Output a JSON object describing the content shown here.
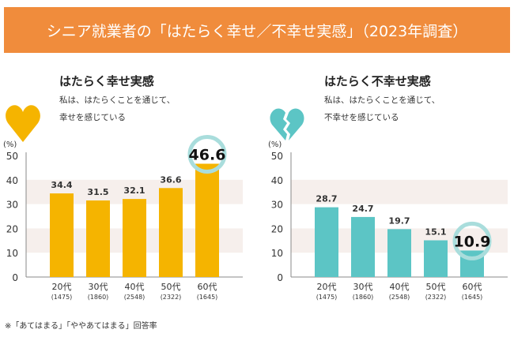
{
  "header": {
    "title": "シニア就業者の「はたらく幸せ／不幸せ実感」（2023年調査）"
  },
  "colors": {
    "header": "#F08C3C",
    "happy": "#F5B400",
    "unhappy": "#5CC5C5",
    "highlight_ring": "#A9DDDC",
    "band": "#F6EFEC"
  },
  "panels": [
    {
      "icon": "heart-icon",
      "title": "はたらく幸せ実感",
      "desc_line1": "私は、はたらくことを通じて、",
      "desc_line2": "幸せを感じている"
    },
    {
      "icon": "broken-heart-icon",
      "title": "はたらく不幸せ実感",
      "desc_line1": "私は、はたらくことを通じて、",
      "desc_line2": "不幸せを感じている"
    }
  ],
  "footnote": "※「あてはまる」「ややあてはまる」回答率",
  "chart_data": [
    {
      "type": "bar",
      "ylabel": "(%)",
      "ylim": [
        0,
        50
      ],
      "yticks": [
        "0",
        "10",
        "20",
        "30",
        "40",
        "50"
      ],
      "categories": [
        "20代",
        "30代",
        "40代",
        "50代",
        "60代"
      ],
      "sample_sizes": [
        "(1475)",
        "(1860)",
        "(2548)",
        "(2322)",
        "(1645)"
      ],
      "values": [
        34.4,
        31.5,
        32.1,
        36.6,
        46.6
      ],
      "labels": [
        "34.4",
        "31.5",
        "32.1",
        "36.6",
        "46.6"
      ],
      "highlight": "60代",
      "color": "#F5B400"
    },
    {
      "type": "bar",
      "ylabel": "(%)",
      "ylim": [
        0,
        50
      ],
      "yticks": [
        "0",
        "10",
        "20",
        "30",
        "40",
        "50"
      ],
      "categories": [
        "20代",
        "30代",
        "40代",
        "50代",
        "60代"
      ],
      "sample_sizes": [
        "(1475)",
        "(1860)",
        "(2548)",
        "(2322)",
        "(1645)"
      ],
      "values": [
        28.7,
        24.7,
        19.7,
        15.1,
        10.9
      ],
      "labels": [
        "28.7",
        "24.7",
        "19.7",
        "15.1",
        "10.9"
      ],
      "highlight": "60代",
      "color": "#5CC5C5"
    }
  ]
}
